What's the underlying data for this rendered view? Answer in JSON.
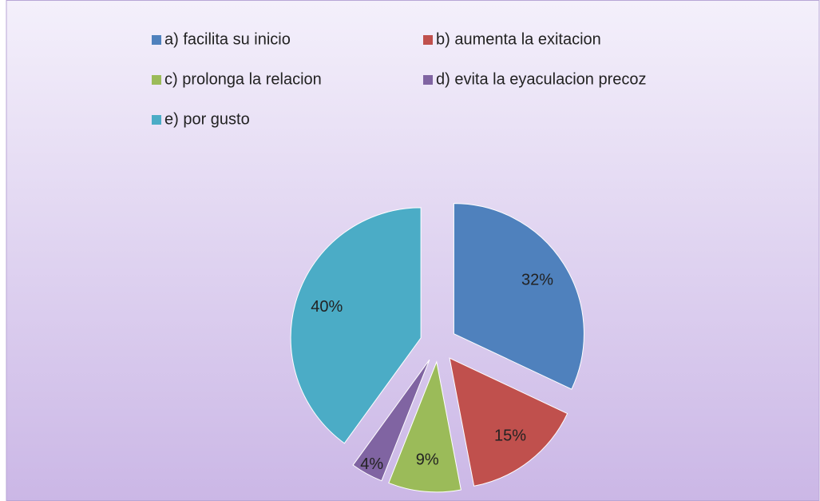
{
  "chart_data": {
    "type": "pie",
    "categories": [
      "a) facilita su inicio",
      "b) aumenta la exitacion",
      "c) prolonga la relacion",
      "d) evita la eyaculacion precoz",
      "e) por gusto"
    ],
    "values": [
      32,
      15,
      9,
      4,
      40
    ],
    "value_labels": [
      "32%",
      "15%",
      "9%",
      "4%",
      "40%"
    ],
    "colors": [
      "#4f81bd",
      "#c0504d",
      "#9bbb59",
      "#8064a2",
      "#4bacc6"
    ],
    "legend": "top"
  }
}
